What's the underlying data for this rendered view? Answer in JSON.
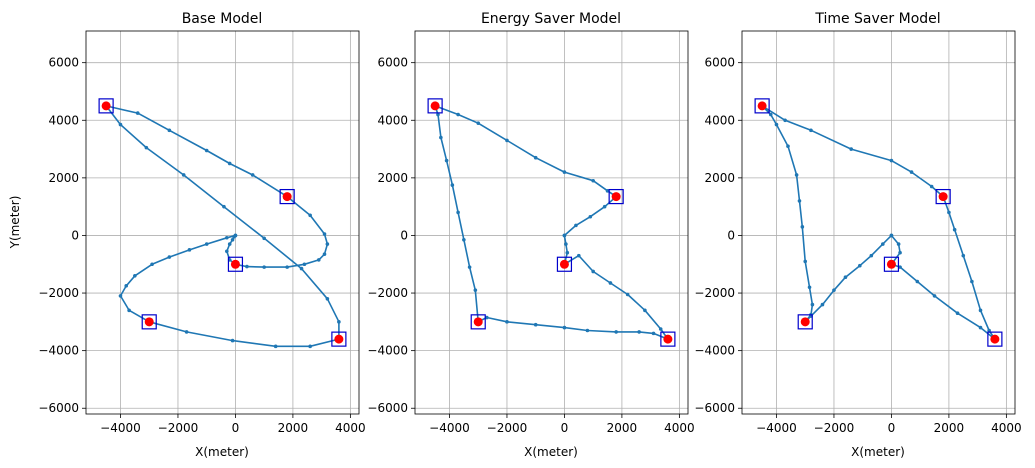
{
  "chart_data": [
    {
      "type": "line",
      "title": "Base Model",
      "xlabel": "X(meter)",
      "ylabel": "Y(meter)",
      "xlim": [
        -5200,
        4300
      ],
      "ylim": [
        -6200,
        7100
      ],
      "xticks": [
        -4000,
        -2000,
        0,
        2000,
        4000
      ],
      "yticks": [
        -6000,
        -4000,
        -2000,
        0,
        2000,
        4000,
        6000
      ],
      "grid": true,
      "waypoints": [
        [
          -4500,
          4500
        ],
        [
          1800,
          1350
        ],
        [
          0,
          -1000
        ],
        [
          -3000,
          -3000
        ],
        [
          3600,
          -3600
        ]
      ],
      "series": [
        {
          "values": [
            [
              0,
              0
            ],
            [
              -50,
              -50
            ],
            [
              -100,
              -150
            ],
            [
              -200,
              -300
            ],
            [
              -300,
              -550
            ],
            [
              -200,
              -850
            ],
            [
              0,
              -1000
            ],
            [
              400,
              -1080
            ],
            [
              1000,
              -1100
            ],
            [
              1800,
              -1100
            ],
            [
              2400,
              -1000
            ],
            [
              2900,
              -850
            ],
            [
              3100,
              -650
            ],
            [
              3200,
              -300
            ],
            [
              3100,
              50
            ],
            [
              2600,
              700
            ],
            [
              1800,
              1350
            ],
            [
              600,
              2100
            ],
            [
              -200,
              2500
            ],
            [
              -1000,
              2950
            ],
            [
              -2300,
              3650
            ],
            [
              -3400,
              4250
            ],
            [
              -4500,
              4500
            ],
            [
              -4000,
              3850
            ],
            [
              -3100,
              3050
            ],
            [
              -1800,
              2100
            ],
            [
              -400,
              1000
            ],
            [
              1000,
              -100
            ],
            [
              2300,
              -1150
            ],
            [
              3200,
              -2200
            ],
            [
              3600,
              -3000
            ],
            [
              3600,
              -3600
            ],
            [
              2600,
              -3850
            ],
            [
              1400,
              -3850
            ],
            [
              -100,
              -3650
            ],
            [
              -1700,
              -3350
            ],
            [
              -3000,
              -3000
            ],
            [
              -3700,
              -2600
            ],
            [
              -4000,
              -2100
            ],
            [
              -3800,
              -1750
            ],
            [
              -3500,
              -1400
            ],
            [
              -2900,
              -1000
            ],
            [
              -2300,
              -750
            ],
            [
              -1600,
              -500
            ],
            [
              -1000,
              -300
            ],
            [
              -300,
              -80
            ],
            [
              0,
              0
            ]
          ]
        }
      ]
    },
    {
      "type": "line",
      "title": "Energy Saver Model",
      "xlabel": "X(meter)",
      "ylabel": "",
      "xlim": [
        -5200,
        4300
      ],
      "ylim": [
        -6200,
        7100
      ],
      "xticks": [
        -4000,
        -2000,
        0,
        2000,
        4000
      ],
      "yticks": [
        -6000,
        -4000,
        -2000,
        0,
        2000,
        4000,
        6000
      ],
      "grid": true,
      "waypoints": [
        [
          -4500,
          4500
        ],
        [
          1800,
          1350
        ],
        [
          0,
          -1000
        ],
        [
          -3000,
          -3000
        ],
        [
          3600,
          -3600
        ]
      ],
      "series": [
        {
          "values": [
            [
              0,
              0
            ],
            [
              400,
              350
            ],
            [
              900,
              650
            ],
            [
              1400,
              1000
            ],
            [
              1800,
              1350
            ],
            [
              1500,
              1550
            ],
            [
              1000,
              1900
            ],
            [
              0,
              2200
            ],
            [
              -1000,
              2700
            ],
            [
              -2000,
              3300
            ],
            [
              -3000,
              3900
            ],
            [
              -3700,
              4200
            ],
            [
              -4500,
              4500
            ],
            [
              -4400,
              4200
            ],
            [
              -4300,
              3400
            ],
            [
              -4100,
              2600
            ],
            [
              -3900,
              1750
            ],
            [
              -3700,
              800
            ],
            [
              -3500,
              -150
            ],
            [
              -3300,
              -1100
            ],
            [
              -3100,
              -1900
            ],
            [
              -3000,
              -3000
            ],
            [
              -2700,
              -2850
            ],
            [
              -2000,
              -3000
            ],
            [
              -1000,
              -3100
            ],
            [
              0,
              -3200
            ],
            [
              800,
              -3300
            ],
            [
              1800,
              -3350
            ],
            [
              2600,
              -3350
            ],
            [
              3100,
              -3400
            ],
            [
              3600,
              -3600
            ],
            [
              3350,
              -3250
            ],
            [
              2800,
              -2600
            ],
            [
              2200,
              -2050
            ],
            [
              1600,
              -1650
            ],
            [
              1000,
              -1250
            ],
            [
              500,
              -700
            ],
            [
              0,
              -1000
            ],
            [
              100,
              -600
            ],
            [
              50,
              -300
            ],
            [
              0,
              0
            ]
          ]
        }
      ]
    },
    {
      "type": "line",
      "title": "Time Saver Model",
      "xlabel": "X(meter)",
      "ylabel": "",
      "xlim": [
        -5200,
        4300
      ],
      "ylim": [
        -6200,
        7100
      ],
      "xticks": [
        -4000,
        -2000,
        0,
        2000,
        4000
      ],
      "yticks": [
        -6000,
        -4000,
        -2000,
        0,
        2000,
        4000,
        6000
      ],
      "grid": true,
      "waypoints": [
        [
          -4500,
          4500
        ],
        [
          1800,
          1350
        ],
        [
          0,
          -1000
        ],
        [
          -3000,
          -3000
        ],
        [
          3600,
          -3600
        ]
      ],
      "series": [
        {
          "values": [
            [
              0,
              0
            ],
            [
              -300,
              -300
            ],
            [
              -700,
              -700
            ],
            [
              -1100,
              -1050
            ],
            [
              -1600,
              -1450
            ],
            [
              -2000,
              -1900
            ],
            [
              -2400,
              -2400
            ],
            [
              -2800,
              -2800
            ],
            [
              -3000,
              -3000
            ],
            [
              -2800,
              -2750
            ],
            [
              -2750,
              -2400
            ],
            [
              -2850,
              -1800
            ],
            [
              -3000,
              -900
            ],
            [
              -3100,
              300
            ],
            [
              -3200,
              1200
            ],
            [
              -3300,
              2100
            ],
            [
              -3600,
              3100
            ],
            [
              -4000,
              3850
            ],
            [
              -4200,
              4200
            ],
            [
              -4500,
              4500
            ],
            [
              -3700,
              4000
            ],
            [
              -2800,
              3650
            ],
            [
              -1400,
              3000
            ],
            [
              0,
              2600
            ],
            [
              700,
              2200
            ],
            [
              1400,
              1700
            ],
            [
              1800,
              1350
            ],
            [
              2000,
              800
            ],
            [
              2200,
              200
            ],
            [
              2500,
              -700
            ],
            [
              2800,
              -1600
            ],
            [
              3100,
              -2600
            ],
            [
              3400,
              -3300
            ],
            [
              3600,
              -3600
            ],
            [
              3100,
              -3200
            ],
            [
              2300,
              -2700
            ],
            [
              1500,
              -2100
            ],
            [
              900,
              -1600
            ],
            [
              300,
              -1100
            ],
            [
              0,
              -1000
            ],
            [
              300,
              -600
            ],
            [
              250,
              -300
            ],
            [
              0,
              0
            ]
          ]
        }
      ]
    }
  ],
  "colors": {
    "line": "#1f77b4",
    "marker_fill": "#ff0000",
    "marker_box": "#0000cc",
    "grid": "#b0b0b0"
  }
}
